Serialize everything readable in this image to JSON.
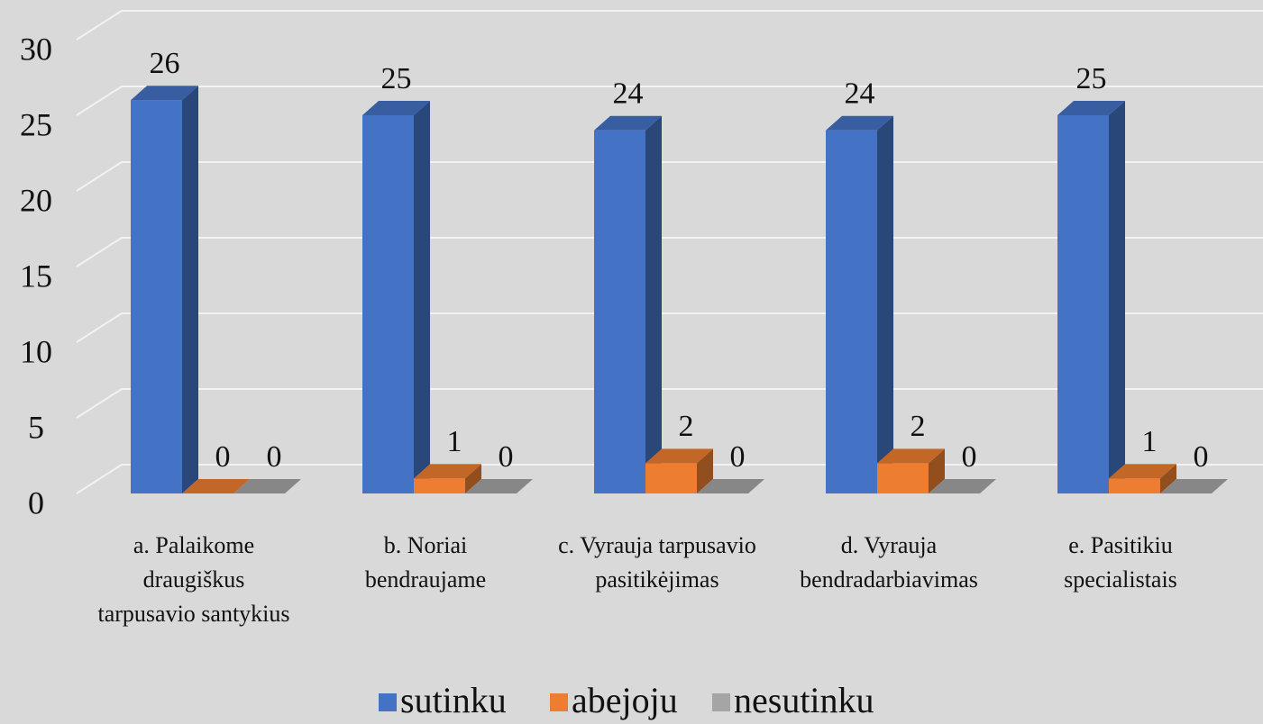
{
  "chart_data": {
    "type": "bar3d",
    "categories": [
      "a. Palaikome\ndraugiškus\ntarpusavio santykius",
      "b. Noriai\nbendraujame",
      "c. Vyrauja tarpusavio\npasitikėjimas",
      "d. Vyrauja\nbendradarbiavimas",
      "e. Pasitikiu\nspecialistais"
    ],
    "series": [
      {
        "name": "sutinku",
        "color": "#4472c4",
        "values": [
          26,
          25,
          24,
          24,
          25
        ]
      },
      {
        "name": "abejoju",
        "color": "#ed7d31",
        "values": [
          0,
          1,
          2,
          2,
          1
        ]
      },
      {
        "name": "nesutinku",
        "color": "#a5a5a5",
        "values": [
          0,
          0,
          0,
          0,
          0
        ]
      }
    ],
    "ylim": [
      0,
      30
    ],
    "yticks": [
      0,
      5,
      10,
      15,
      20,
      25,
      30
    ],
    "grid": true,
    "legend": "bottom"
  }
}
